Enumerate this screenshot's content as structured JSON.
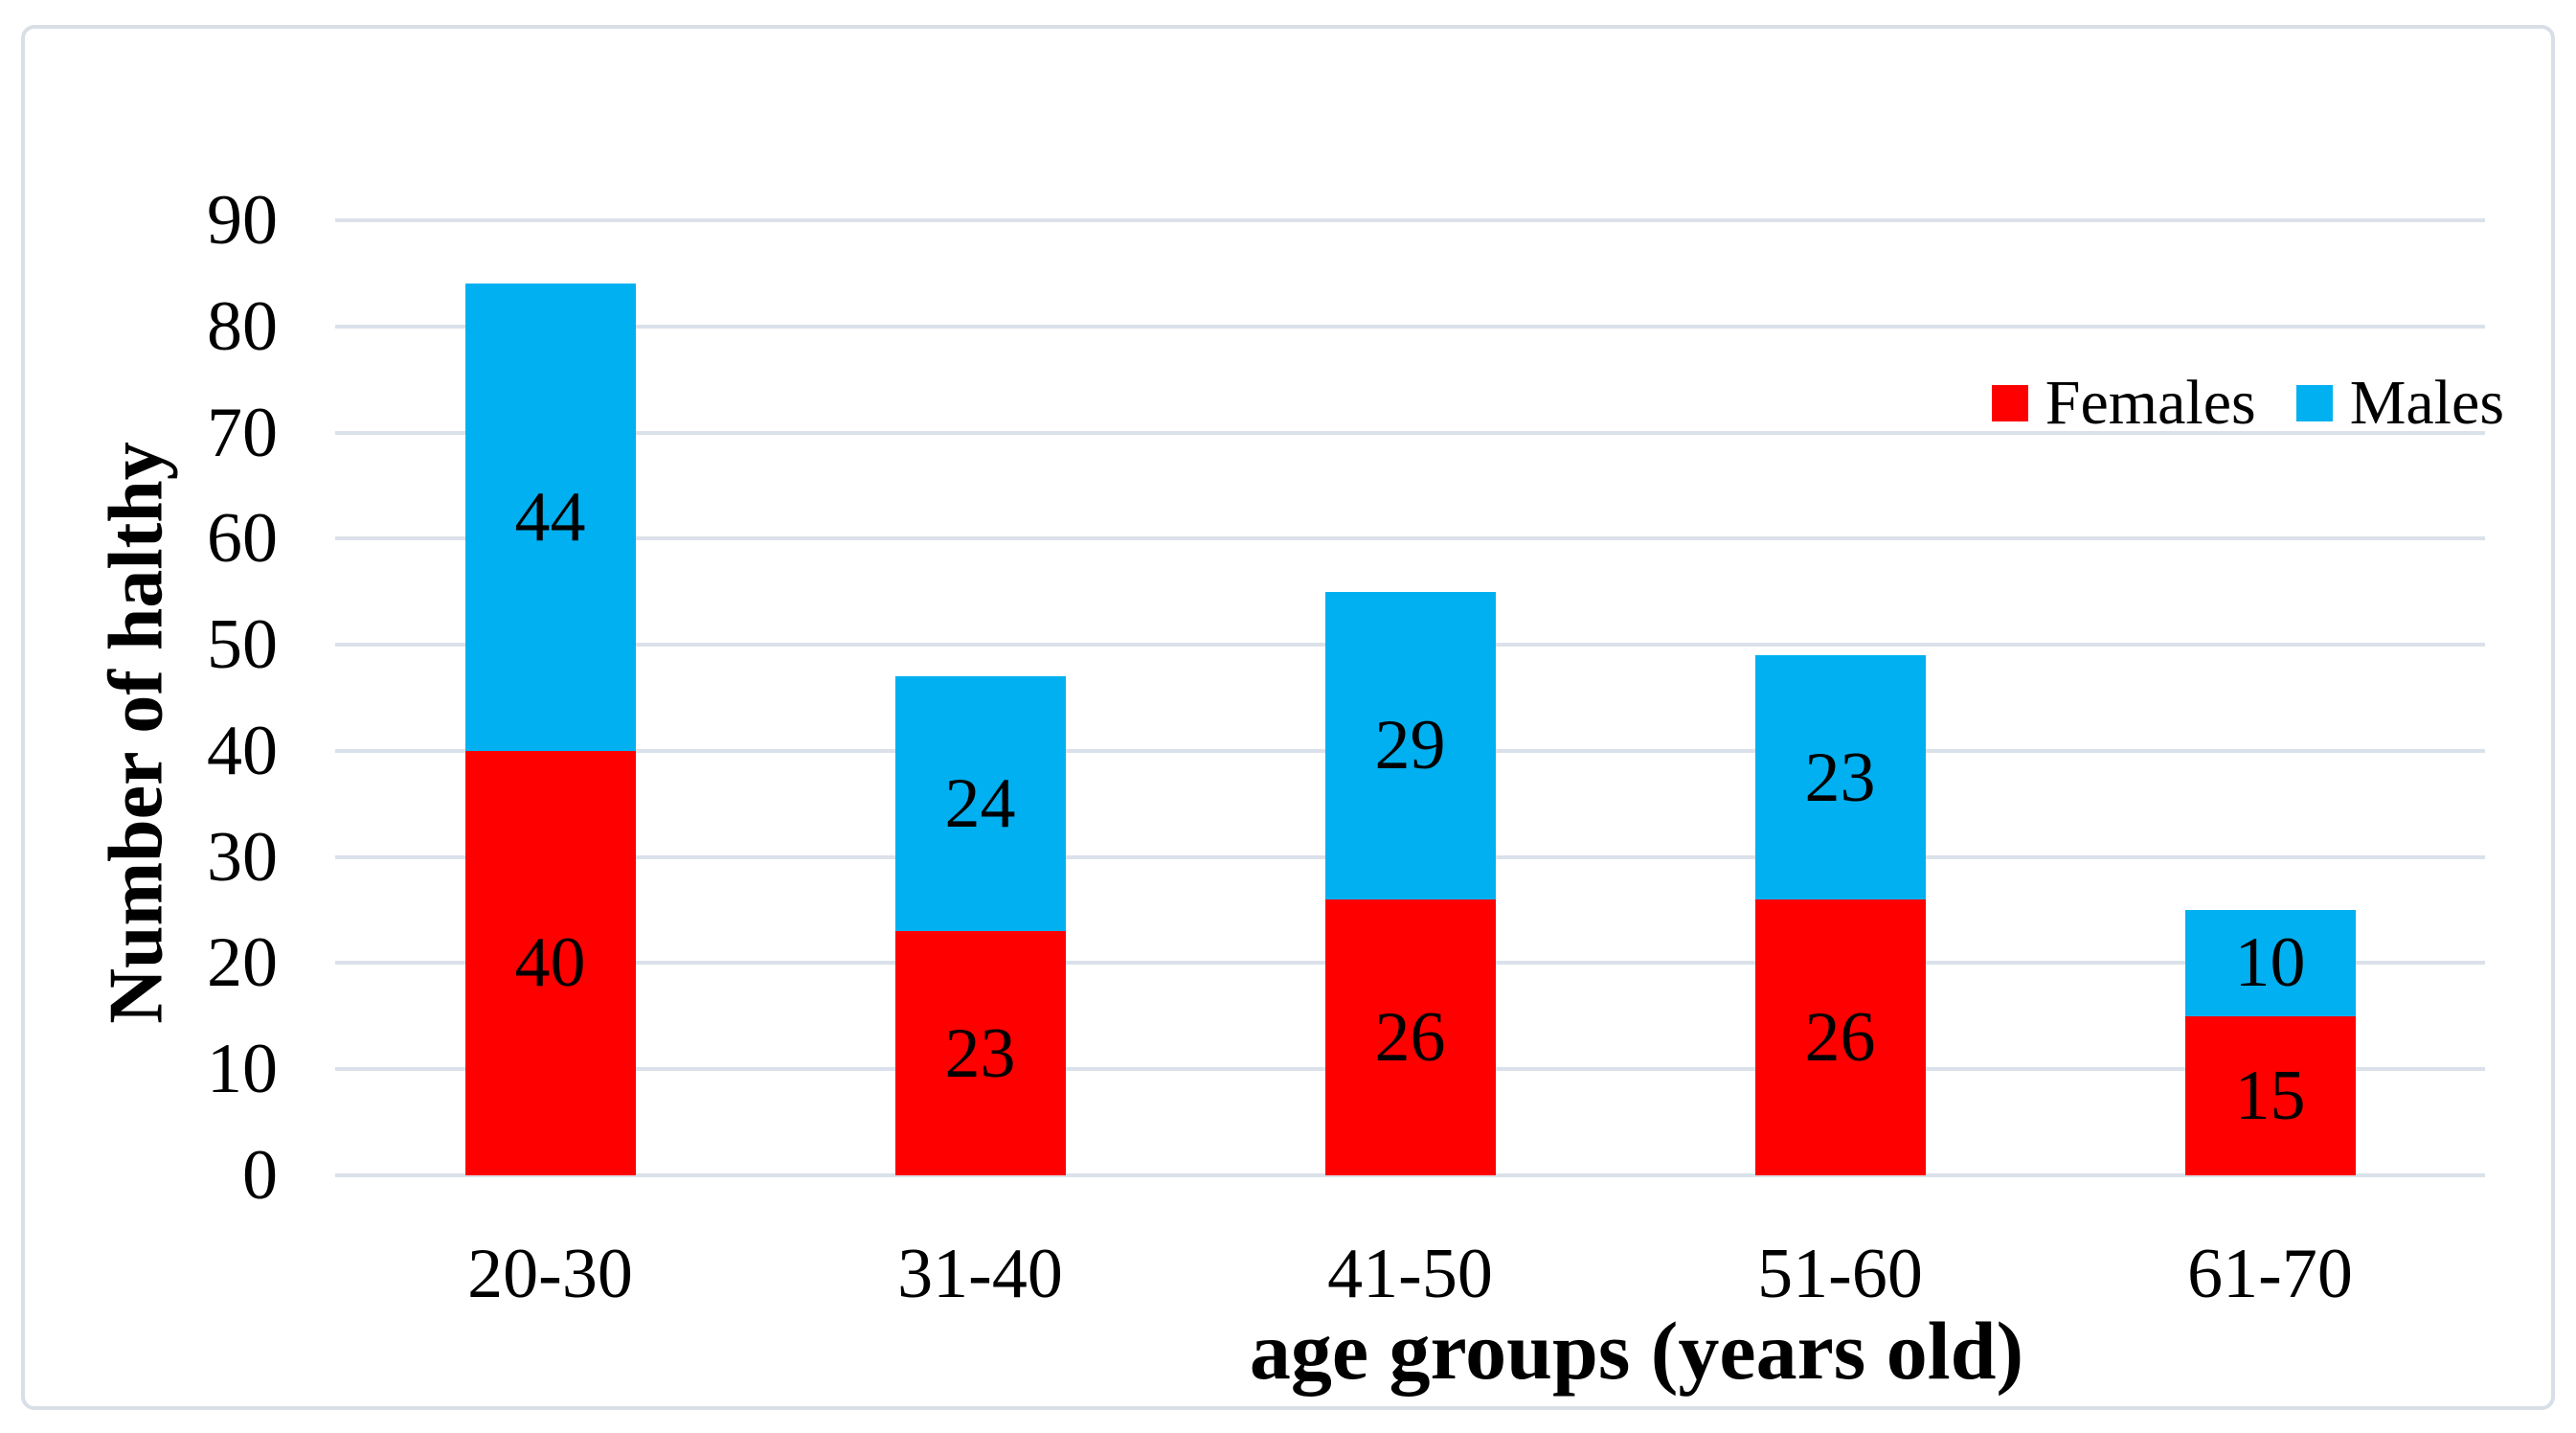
{
  "chart_data": {
    "type": "bar",
    "stacked": true,
    "title": "",
    "xlabel": "age groups (years old)",
    "ylabel": "Number of halthy",
    "categories": [
      "20-30",
      "31-40",
      "41-50",
      "51-60",
      "61-70"
    ],
    "series": [
      {
        "name": "Females",
        "color": "#ff0000",
        "values": [
          40,
          23,
          26,
          26,
          15
        ]
      },
      {
        "name": "Males",
        "color": "#00b0f0",
        "values": [
          44,
          24,
          29,
          23,
          10
        ]
      }
    ],
    "ylim": [
      0,
      90
    ],
    "yticks": [
      0,
      10,
      20,
      30,
      40,
      50,
      60,
      70,
      80,
      90
    ],
    "grid": true,
    "data_labels": true,
    "legend_position": "top-right"
  },
  "style": {
    "females_color": "#ff0000",
    "males_color": "#00b0f0",
    "gridline_color": "#dbe1ea",
    "figure_border_color": "#d9dfe7",
    "text_color": "#000000",
    "background_color": "#ffffff"
  }
}
